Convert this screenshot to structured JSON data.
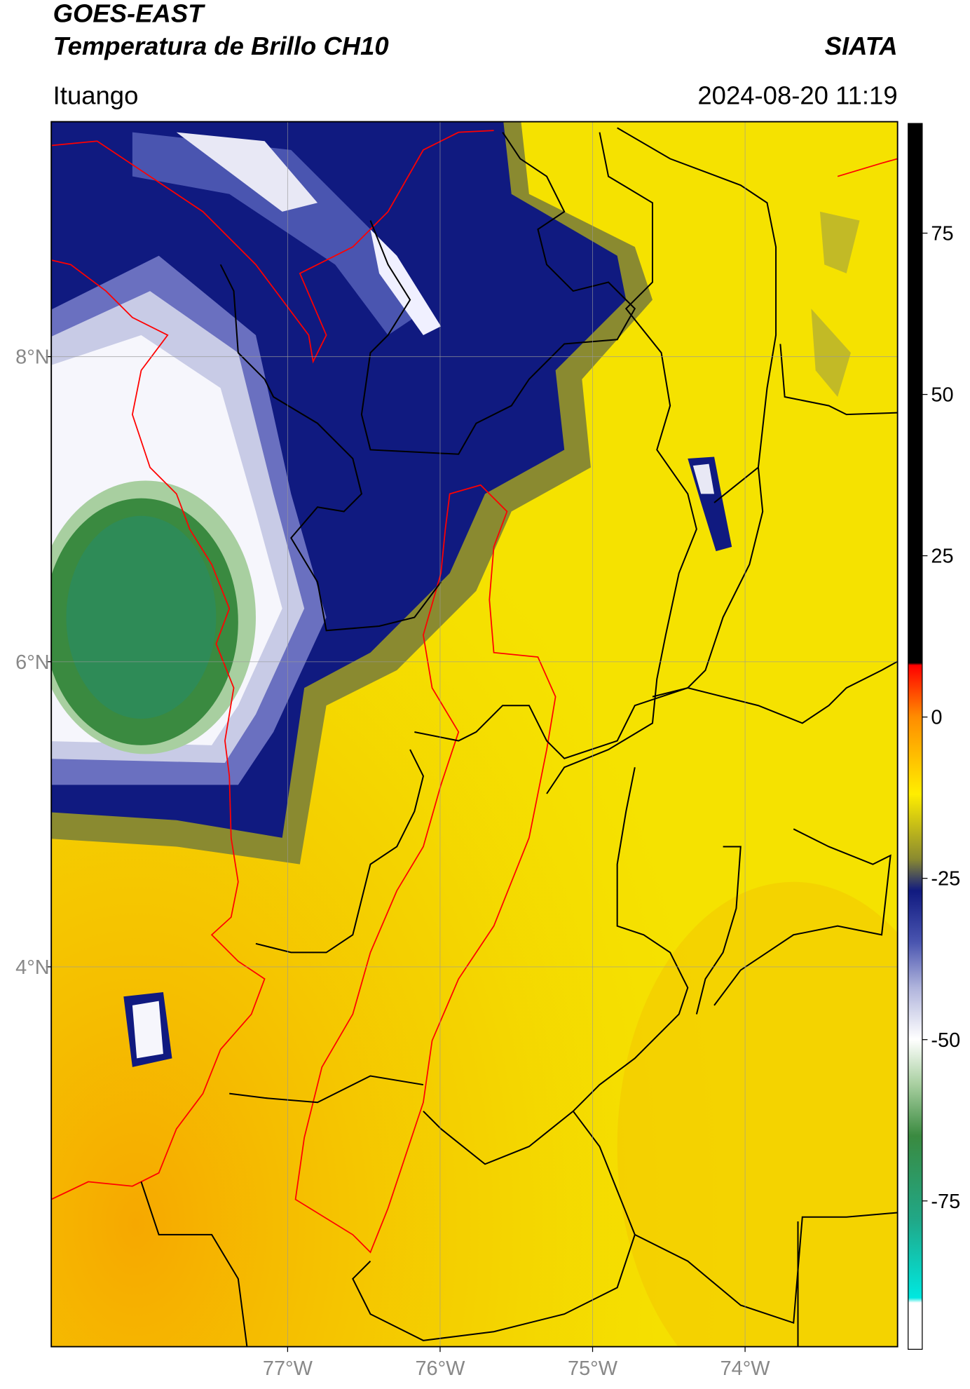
{
  "header": {
    "satellite": "GOES-EAST",
    "product": "Temperatura de Brillo CH10",
    "brand": "SIATA",
    "location": "Ituango",
    "datetime": "2024-08-20 11:19"
  },
  "map": {
    "xlim": [
      -78.55,
      -73.0
    ],
    "ylim": [
      1.51,
      9.54
    ],
    "xticks": [
      {
        "value": -77,
        "label": "77°W"
      },
      {
        "value": -76,
        "label": "76°W"
      },
      {
        "value": -75,
        "label": "75°W"
      },
      {
        "value": -74,
        "label": "74°W"
      }
    ],
    "yticks": [
      {
        "value": 8,
        "label": "8°N"
      },
      {
        "value": 6,
        "label": "6°N"
      },
      {
        "value": 4,
        "label": "4°N"
      }
    ],
    "grid": true
  },
  "colorbar": {
    "lim": [
      -98,
      92
    ],
    "ticks": [
      75,
      50,
      25,
      0,
      -25,
      -50,
      -75
    ]
  }
}
